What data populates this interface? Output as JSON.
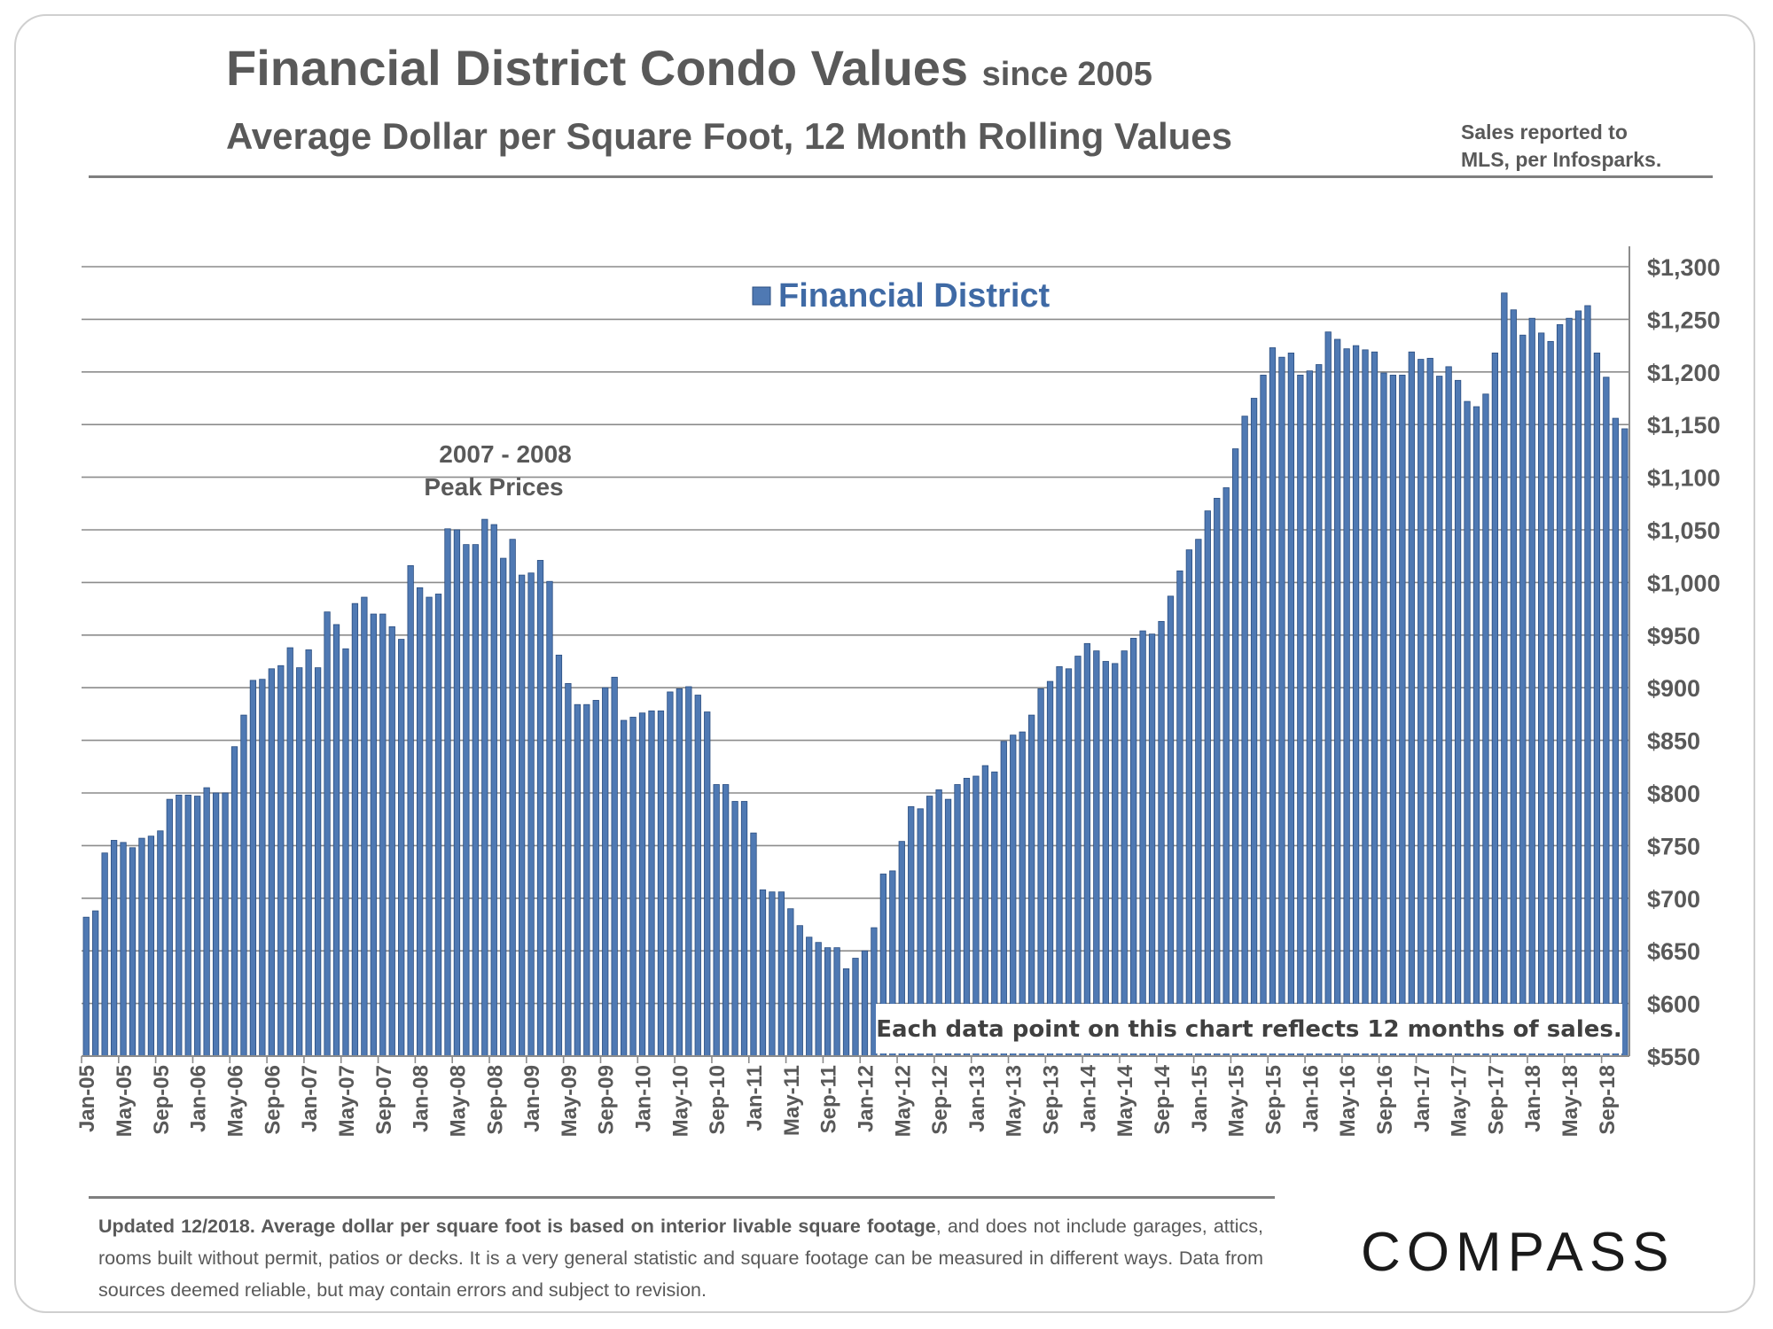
{
  "header": {
    "title": "Financial District Condo Values",
    "title_suffix": "since 2005",
    "subtitle": "Average Dollar per Square Foot, 12 Month Rolling Values",
    "source_line1": "Sales reported to",
    "source_line2": "MLS, per Infosparks."
  },
  "footer": {
    "bold_text": "Updated 12/2018. Average dollar per square foot is based on interior livable square footage",
    "rest_text": ", and does not include garages, attics, rooms built without permit, patios or decks. It is a very general statistic and square footage can be measured in different ways. Data from sources deemed reliable, but may contain errors and subject to revision.",
    "logo_text": "COMPASS"
  },
  "colors": {
    "bar_fill": "#4f79b3",
    "bar_stroke": "#2b4e80",
    "legend_text": "#3f6aa5",
    "grid": "#8c8c8c",
    "text": "#595959"
  },
  "chart_data": {
    "type": "bar",
    "title": "Financial District Condo Values since 2005",
    "subtitle": "Average Dollar per Square Foot, 12 Month Rolling Values",
    "series_name": "Financial District",
    "y_axis_side": "right",
    "ylim": [
      550,
      1300
    ],
    "yticks": [
      550,
      600,
      650,
      700,
      750,
      800,
      850,
      900,
      950,
      1000,
      1050,
      1100,
      1150,
      1200,
      1250,
      1300
    ],
    "ytick_labels": [
      "$550",
      "$600",
      "$650",
      "$700",
      "$750",
      "$800",
      "$850",
      "$900",
      "$950",
      "$1,000",
      "$1,050",
      "$1,100",
      "$1,150",
      "$1,200",
      "$1,250",
      "$1,300"
    ],
    "x_tick_labels": [
      "Jan-05",
      "May-05",
      "Sep-05",
      "Jan-06",
      "May-06",
      "Sep-06",
      "Jan-07",
      "May-07",
      "Sep-07",
      "Jan-08",
      "May-08",
      "Sep-08",
      "Jan-09",
      "May-09",
      "Sep-09",
      "Jan-10",
      "May-10",
      "Sep-10",
      "Jan-11",
      "May-11",
      "Sep-11",
      "Jan-12",
      "May-12",
      "Sep-12",
      "Jan-13",
      "May-13",
      "Sep-13",
      "Jan-14",
      "May-14",
      "Sep-14",
      "Jan-15",
      "May-15",
      "Sep-15",
      "Jan-16",
      "May-16",
      "Sep-16",
      "Jan-17",
      "May-17",
      "Sep-17",
      "Jan-18",
      "May-18",
      "Sep-18"
    ],
    "x_tick_every": 4,
    "start_month": "Jan-05",
    "values": [
      682,
      688,
      743,
      755,
      753,
      748,
      757,
      759,
      764,
      794,
      798,
      798,
      797,
      805,
      800,
      800,
      844,
      874,
      907,
      908,
      918,
      921,
      938,
      919,
      936,
      919,
      972,
      960,
      937,
      980,
      986,
      970,
      970,
      958,
      946,
      1016,
      995,
      986,
      989,
      1051,
      1050,
      1036,
      1036,
      1060,
      1055,
      1023,
      1041,
      1007,
      1009,
      1021,
      1001,
      931,
      904,
      884,
      884,
      888,
      900,
      910,
      869,
      872,
      876,
      878,
      878,
      896,
      899,
      901,
      893,
      877,
      808,
      808,
      792,
      792,
      762,
      708,
      706,
      706,
      690,
      674,
      663,
      658,
      653,
      653,
      633,
      643,
      650,
      672,
      723,
      726,
      754,
      787,
      785,
      797,
      803,
      794,
      808,
      814,
      816,
      826,
      820,
      849,
      855,
      858,
      874,
      899,
      906,
      920,
      918,
      930,
      942,
      935,
      925,
      923,
      935,
      947,
      954,
      951,
      963,
      987,
      1011,
      1031,
      1041,
      1068,
      1080,
      1090,
      1127,
      1158,
      1175,
      1197,
      1223,
      1214,
      1218,
      1197,
      1201,
      1207,
      1238,
      1231,
      1222,
      1225,
      1221,
      1219,
      1199,
      1197,
      1197,
      1219,
      1212,
      1213,
      1196,
      1205,
      1192,
      1172,
      1167,
      1179,
      1218,
      1275,
      1259,
      1235,
      1251,
      1237,
      1229,
      1245,
      1251,
      1258,
      1263,
      1218,
      1195,
      1156,
      1146
    ],
    "annotations": [
      {
        "text_line1": "2007 - 2008",
        "text_line2": "Peak Prices",
        "anchor": "above-2008-peak"
      },
      {
        "text": "Each data point on this chart reflects 12 months of sales.",
        "anchor": "bottom-right-box"
      }
    ],
    "legend_position": "top-center",
    "grid": true
  }
}
